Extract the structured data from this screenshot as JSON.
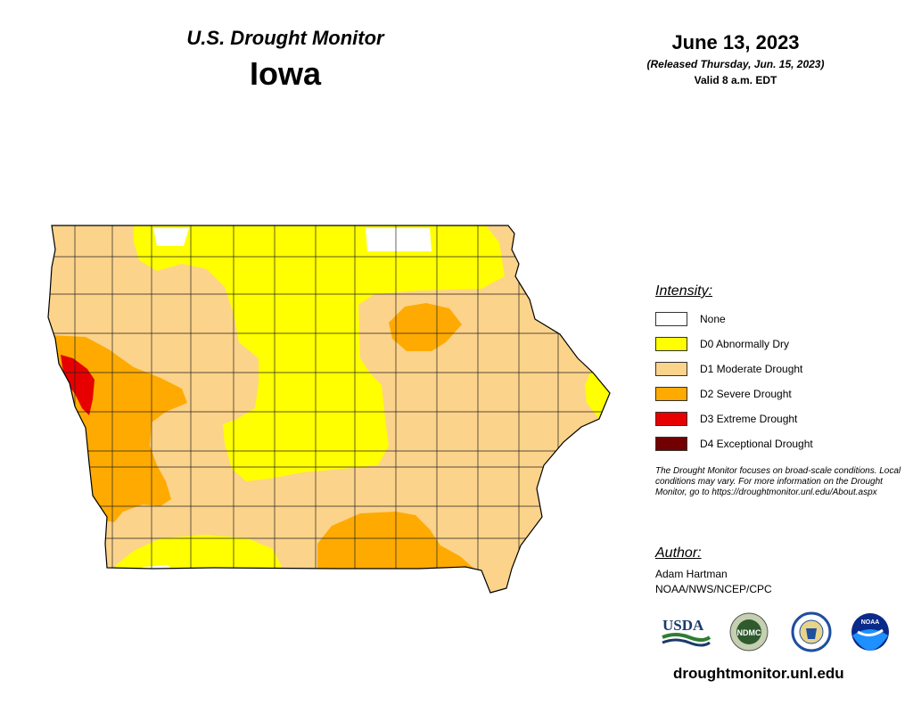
{
  "header": {
    "title": "U.S. Drought Monitor",
    "state": "Iowa"
  },
  "date": {
    "map_date": "June 13, 2023",
    "released": "(Released Thursday, Jun. 15, 2023)",
    "valid": "Valid 8 a.m. EDT"
  },
  "legend": {
    "heading": "Intensity:",
    "items": [
      {
        "label": "None",
        "color": "#ffffff"
      },
      {
        "label": "D0 Abnormally Dry",
        "color": "#ffff00"
      },
      {
        "label": "D1 Moderate Drought",
        "color": "#fcd38a"
      },
      {
        "label": "D2 Severe Drought",
        "color": "#ffaa00"
      },
      {
        "label": "D3 Extreme Drought",
        "color": "#e60000"
      },
      {
        "label": "D4 Exceptional Drought",
        "color": "#730000"
      }
    ]
  },
  "note": "The Drought Monitor focuses on broad-scale conditions. Local conditions may vary. For more information on the Drought Monitor, go to https://droughtmonitor.unl.edu/About.aspx",
  "author": {
    "heading": "Author:",
    "name": "Adam Hartman",
    "org": "NOAA/NWS/NCEP/CPC"
  },
  "logos": {
    "usda": "USDA",
    "ndmc": "NDMC",
    "noaa": "NOAA"
  },
  "footer": {
    "url": "droughtmonitor.unl.edu"
  },
  "colors": {
    "none": "#ffffff",
    "d0": "#ffff00",
    "d1": "#fcd38a",
    "d2": "#ffaa00",
    "d3": "#e60000",
    "border": "#000000"
  }
}
